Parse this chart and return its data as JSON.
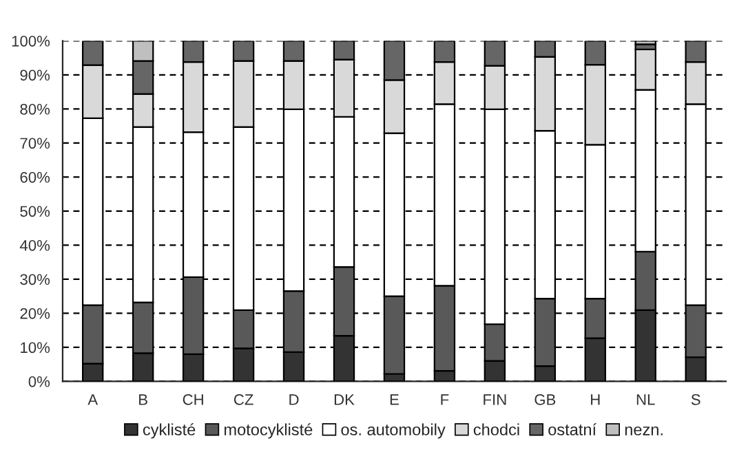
{
  "chart_data": {
    "type": "bar",
    "stacked": true,
    "categories": [
      "A",
      "B",
      "CH",
      "CZ",
      "D",
      "DK",
      "E",
      "F",
      "FIN",
      "GB",
      "H",
      "NL",
      "S"
    ],
    "series": [
      {
        "name": "cyklisté",
        "color": "#333333",
        "values": [
          5.2,
          8.3,
          8.0,
          9.7,
          8.6,
          13.4,
          2.2,
          3.1,
          6.0,
          4.5,
          12.7,
          20.9,
          7.1
        ]
      },
      {
        "name": "motocyklisté",
        "color": "#595959",
        "values": [
          17.2,
          14.9,
          22.6,
          11.2,
          17.9,
          20.2,
          22.8,
          25.0,
          10.8,
          19.8,
          11.6,
          17.2,
          15.3
        ]
      },
      {
        "name": "os. automobily",
        "color": "#ffffff",
        "values": [
          54.9,
          51.5,
          42.6,
          53.8,
          53.4,
          44.1,
          47.9,
          53.3,
          63.1,
          49.3,
          45.2,
          47.5,
          59.0
        ]
      },
      {
        "name": "chodci",
        "color": "#d9d9d9",
        "values": [
          15.6,
          9.7,
          20.6,
          19.4,
          14.2,
          16.8,
          15.6,
          12.4,
          12.8,
          21.7,
          23.5,
          11.9,
          12.4
        ]
      },
      {
        "name": "ostatní",
        "color": "#666666",
        "values": [
          7.1,
          9.7,
          6.2,
          5.9,
          5.9,
          5.5,
          11.5,
          6.2,
          7.3,
          4.7,
          7.0,
          1.5,
          6.2
        ]
      },
      {
        "name": "nezn.",
        "color": "#bfbfbf",
        "values": [
          null,
          5.9,
          null,
          null,
          null,
          null,
          null,
          null,
          null,
          null,
          null,
          1.0,
          null
        ]
      }
    ],
    "ylim": [
      0,
      100
    ],
    "yticks": [
      {
        "value": 0,
        "label": "0%"
      },
      {
        "value": 10,
        "label": "10%"
      },
      {
        "value": 20,
        "label": "20%"
      },
      {
        "value": 30,
        "label": "30%"
      },
      {
        "value": 40,
        "label": "40%"
      },
      {
        "value": 50,
        "label": "50%"
      },
      {
        "value": 60,
        "label": "60%"
      },
      {
        "value": 70,
        "label": "70%"
      },
      {
        "value": 80,
        "label": "80%"
      },
      {
        "value": 90,
        "label": "90%"
      },
      {
        "value": 100,
        "label": "100%"
      }
    ],
    "grid": "y",
    "legend": "bottom"
  }
}
